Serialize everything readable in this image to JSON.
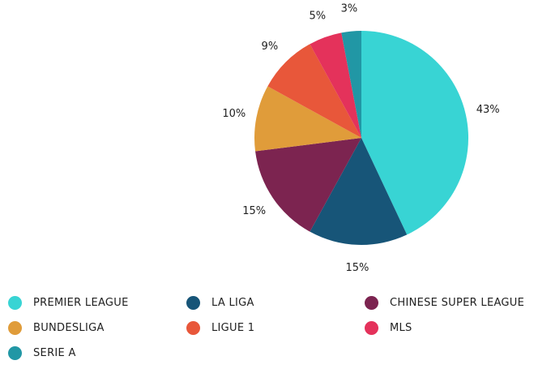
{
  "chart_data": {
    "type": "pie",
    "title": "",
    "slices": [
      {
        "label": "PREMIER LEAGUE",
        "value": 43,
        "display": "43%",
        "color": "#38d4d4"
      },
      {
        "label": "LA LIGA",
        "value": 15,
        "display": "15%",
        "color": "#175578"
      },
      {
        "label": "CHINESE SUPER LEAGUE",
        "value": 15,
        "display": "15%",
        "color": "#7c2450"
      },
      {
        "label": "BUNDESLIGA",
        "value": 10,
        "display": "10%",
        "color": "#e09c3a"
      },
      {
        "label": "LIGUE 1",
        "value": 9,
        "display": "9%",
        "color": "#e8573a"
      },
      {
        "label": "MLS",
        "value": 5,
        "display": "5%",
        "color": "#e4325b"
      },
      {
        "label": "SERIE A",
        "value": 3,
        "display": "3%",
        "color": "#2197a5"
      }
    ],
    "legend_position": "bottom"
  }
}
